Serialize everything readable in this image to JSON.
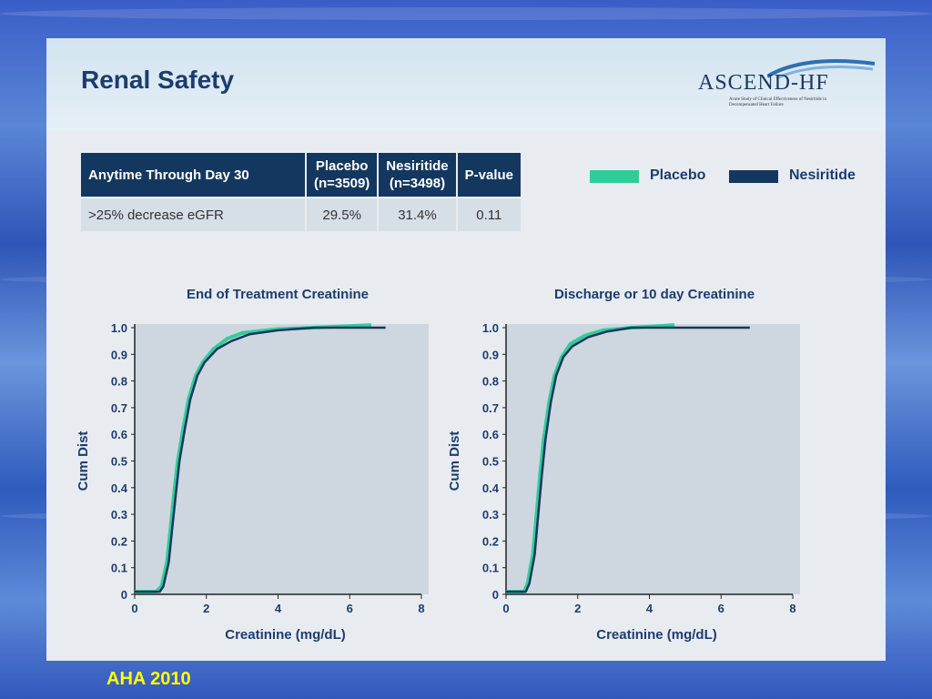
{
  "slide": {
    "title": "Renal Safety",
    "logo": {
      "text": "ASCEND-HF",
      "subtitle": "Acute Study of Clinical Effectiveness of Nesiritide in Decompensated Heart Failure"
    },
    "footer": "AHA 2010"
  },
  "table": {
    "headers": [
      [
        "Anytime Through Day 30"
      ],
      [
        "Placebo",
        "(n=3509)"
      ],
      [
        "Nesiritide",
        "(n=3498)"
      ],
      [
        "P-value"
      ]
    ],
    "rows": [
      [
        ">25% decrease eGFR",
        "29.5%",
        "31.4%",
        "0.11"
      ]
    ]
  },
  "legend": {
    "items": [
      {
        "label": "Placebo",
        "color": "#33cc99"
      },
      {
        "label": "Nesiritide",
        "color": "#14375f"
      }
    ]
  },
  "chart_data": [
    {
      "type": "line",
      "title": "End of Treatment Creatinine",
      "xlabel": "Creatinine (mg/dL)",
      "ylabel": "Cum Dist",
      "xlim": [
        0,
        8
      ],
      "ylim": [
        0,
        1.0
      ],
      "x_ticks": [
        0,
        2,
        4,
        6,
        8
      ],
      "y_ticks": [
        0,
        0.1,
        0.2,
        0.3,
        0.4,
        0.5,
        0.6,
        0.7,
        0.8,
        0.9,
        1.0
      ],
      "y_tick_labels": [
        "0",
        "0.1",
        "0.2",
        "0.3",
        "0.4",
        "0.5",
        "0.6",
        "0.7",
        "0.8",
        "0.9",
        "1.0"
      ],
      "series": [
        {
          "name": "Placebo",
          "color": "#33cc99",
          "points": [
            [
              0,
              0.01
            ],
            [
              0.6,
              0.01
            ],
            [
              0.75,
              0.03
            ],
            [
              0.9,
              0.12
            ],
            [
              1.0,
              0.25
            ],
            [
              1.1,
              0.38
            ],
            [
              1.2,
              0.5
            ],
            [
              1.35,
              0.62
            ],
            [
              1.5,
              0.73
            ],
            [
              1.7,
              0.82
            ],
            [
              1.9,
              0.87
            ],
            [
              2.2,
              0.92
            ],
            [
              2.6,
              0.96
            ],
            [
              3.0,
              0.98
            ],
            [
              4.0,
              0.995
            ],
            [
              5.0,
              1.0
            ],
            [
              6.6,
              1.01
            ]
          ]
        },
        {
          "name": "Nesiritide",
          "color": "#14375f",
          "points": [
            [
              0,
              0.01
            ],
            [
              0.7,
              0.01
            ],
            [
              0.8,
              0.03
            ],
            [
              0.95,
              0.12
            ],
            [
              1.05,
              0.25
            ],
            [
              1.15,
              0.38
            ],
            [
              1.25,
              0.5
            ],
            [
              1.4,
              0.62
            ],
            [
              1.55,
              0.73
            ],
            [
              1.75,
              0.82
            ],
            [
              1.95,
              0.87
            ],
            [
              2.3,
              0.92
            ],
            [
              2.7,
              0.95
            ],
            [
              3.2,
              0.975
            ],
            [
              4.0,
              0.99
            ],
            [
              5.0,
              1.0
            ],
            [
              7.0,
              1.0
            ]
          ]
        }
      ]
    },
    {
      "type": "line",
      "title": "Discharge or 10 day Creatinine",
      "xlabel": "Creatinine (mg/dL)",
      "ylabel": "Cum Dist",
      "xlim": [
        0,
        8
      ],
      "ylim": [
        0,
        1.0
      ],
      "x_ticks": [
        0,
        2,
        4,
        6,
        8
      ],
      "y_ticks": [
        0,
        0.1,
        0.2,
        0.3,
        0.4,
        0.5,
        0.6,
        0.7,
        0.8,
        0.9,
        1.0
      ],
      "y_tick_labels": [
        "0",
        "0.1",
        "0.2",
        "0.3",
        "0.4",
        "0.5",
        "0.6",
        "0.7",
        "0.8",
        "0.9",
        "1.0"
      ],
      "series": [
        {
          "name": "Placebo",
          "color": "#33cc99",
          "points": [
            [
              0,
              0.01
            ],
            [
              0.5,
              0.01
            ],
            [
              0.6,
              0.04
            ],
            [
              0.75,
              0.15
            ],
            [
              0.85,
              0.3
            ],
            [
              0.95,
              0.45
            ],
            [
              1.05,
              0.58
            ],
            [
              1.2,
              0.72
            ],
            [
              1.35,
              0.82
            ],
            [
              1.55,
              0.89
            ],
            [
              1.8,
              0.94
            ],
            [
              2.2,
              0.97
            ],
            [
              2.7,
              0.99
            ],
            [
              3.5,
              1.0
            ],
            [
              4.7,
              1.01
            ]
          ]
        },
        {
          "name": "Nesiritide",
          "color": "#14375f",
          "points": [
            [
              0,
              0.01
            ],
            [
              0.55,
              0.01
            ],
            [
              0.65,
              0.04
            ],
            [
              0.8,
              0.15
            ],
            [
              0.9,
              0.3
            ],
            [
              1.0,
              0.45
            ],
            [
              1.1,
              0.58
            ],
            [
              1.25,
              0.72
            ],
            [
              1.4,
              0.82
            ],
            [
              1.6,
              0.89
            ],
            [
              1.85,
              0.93
            ],
            [
              2.3,
              0.965
            ],
            [
              2.8,
              0.985
            ],
            [
              3.5,
              1.0
            ],
            [
              6.8,
              1.0
            ]
          ]
        }
      ]
    }
  ]
}
